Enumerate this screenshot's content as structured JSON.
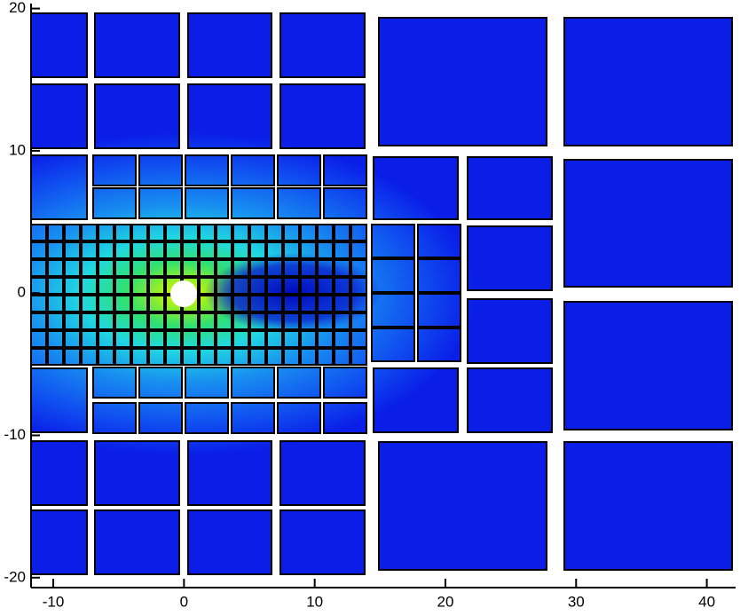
{
  "chart_data": {
    "type": "contour",
    "xlim": [
      -11.7,
      42.2
    ],
    "ylim": [
      -20.7,
      20.1
    ],
    "xticks": [
      -10,
      0,
      10,
      20,
      30,
      40
    ],
    "yticks": [
      -20,
      -10,
      0,
      10,
      20
    ]
  }
}
